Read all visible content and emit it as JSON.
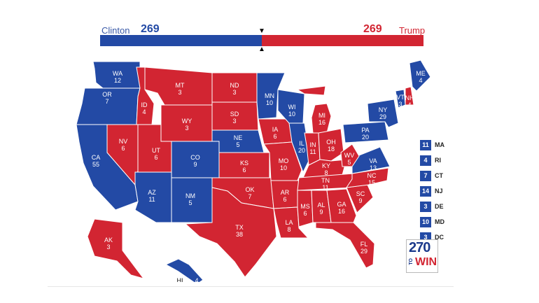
{
  "colors": {
    "dem": "#234aa5",
    "rep": "#d22532"
  },
  "candidates": {
    "left": {
      "name": "Clinton",
      "votes": "269"
    },
    "right": {
      "name": "Trump",
      "votes": "269"
    }
  },
  "states": [
    {
      "abbr": "WA",
      "ev": "12",
      "party": "D"
    },
    {
      "abbr": "OR",
      "ev": "7",
      "party": "D"
    },
    {
      "abbr": "CA",
      "ev": "55",
      "party": "D"
    },
    {
      "abbr": "NV",
      "ev": "6",
      "party": "R"
    },
    {
      "abbr": "ID",
      "ev": "4",
      "party": "R"
    },
    {
      "abbr": "MT",
      "ev": "3",
      "party": "R"
    },
    {
      "abbr": "WY",
      "ev": "3",
      "party": "R"
    },
    {
      "abbr": "UT",
      "ev": "6",
      "party": "R"
    },
    {
      "abbr": "AZ",
      "ev": "11",
      "party": "D"
    },
    {
      "abbr": "CO",
      "ev": "9",
      "party": "D"
    },
    {
      "abbr": "NM",
      "ev": "5",
      "party": "D"
    },
    {
      "abbr": "ND",
      "ev": "3",
      "party": "R"
    },
    {
      "abbr": "SD",
      "ev": "3",
      "party": "R"
    },
    {
      "abbr": "NE",
      "ev": "5",
      "party": "D"
    },
    {
      "abbr": "KS",
      "ev": "6",
      "party": "R"
    },
    {
      "abbr": "OK",
      "ev": "7",
      "party": "R"
    },
    {
      "abbr": "TX",
      "ev": "38",
      "party": "R"
    },
    {
      "abbr": "MN",
      "ev": "10",
      "party": "D"
    },
    {
      "abbr": "IA",
      "ev": "6",
      "party": "R"
    },
    {
      "abbr": "MO",
      "ev": "10",
      "party": "R"
    },
    {
      "abbr": "AR",
      "ev": "6",
      "party": "R"
    },
    {
      "abbr": "LA",
      "ev": "8",
      "party": "R"
    },
    {
      "abbr": "WI",
      "ev": "10",
      "party": "D"
    },
    {
      "abbr": "IL",
      "ev": "20",
      "party": "D"
    },
    {
      "abbr": "MI",
      "ev": "16",
      "party": "R"
    },
    {
      "abbr": "IN",
      "ev": "11",
      "party": "R"
    },
    {
      "abbr": "OH",
      "ev": "18",
      "party": "R"
    },
    {
      "abbr": "KY",
      "ev": "8",
      "party": "R"
    },
    {
      "abbr": "TN",
      "ev": "11",
      "party": "R"
    },
    {
      "abbr": "MS",
      "ev": "6",
      "party": "R"
    },
    {
      "abbr": "AL",
      "ev": "9",
      "party": "R"
    },
    {
      "abbr": "GA",
      "ev": "16",
      "party": "R"
    },
    {
      "abbr": "FL",
      "ev": "29",
      "party": "R"
    },
    {
      "abbr": "SC",
      "ev": "9",
      "party": "R"
    },
    {
      "abbr": "NC",
      "ev": "15",
      "party": "R"
    },
    {
      "abbr": "VA",
      "ev": "13",
      "party": "D"
    },
    {
      "abbr": "WV",
      "ev": "5",
      "party": "R"
    },
    {
      "abbr": "PA",
      "ev": "20",
      "party": "D"
    },
    {
      "abbr": "NY",
      "ev": "29",
      "party": "D"
    },
    {
      "abbr": "VT",
      "ev": "3",
      "party": "D"
    },
    {
      "abbr": "NH",
      "ev": "4",
      "party": "R"
    },
    {
      "abbr": "ME",
      "ev": "4",
      "party": "D"
    },
    {
      "abbr": "AK",
      "ev": "3",
      "party": "R"
    },
    {
      "abbr": "HI",
      "ev": "4",
      "party": "D"
    }
  ],
  "small_states": [
    {
      "abbr": "MA",
      "ev": "11",
      "party": "D"
    },
    {
      "abbr": "RI",
      "ev": "4",
      "party": "D"
    },
    {
      "abbr": "CT",
      "ev": "7",
      "party": "D"
    },
    {
      "abbr": "NJ",
      "ev": "14",
      "party": "D"
    },
    {
      "abbr": "DE",
      "ev": "3",
      "party": "D"
    },
    {
      "abbr": "MD",
      "ev": "10",
      "party": "D"
    },
    {
      "abbr": "DC",
      "ev": "3",
      "party": "D"
    }
  ],
  "logo": {
    "number": "270",
    "to": "TO",
    "win": "WIN"
  }
}
